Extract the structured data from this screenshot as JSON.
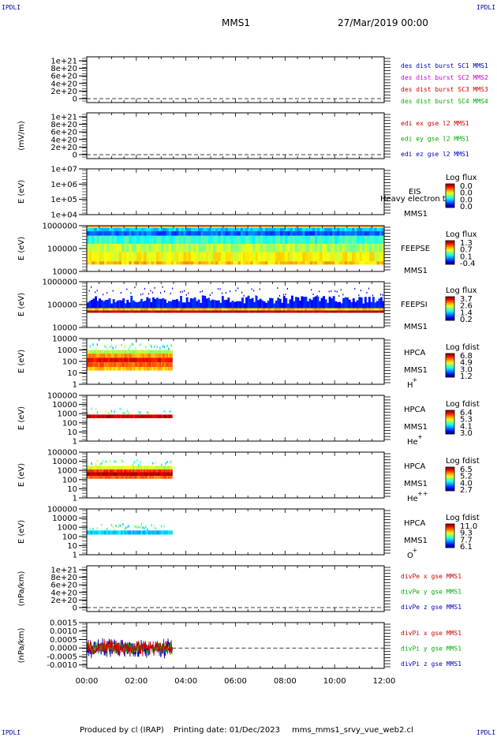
{
  "corner_label": "IPDLI",
  "header": {
    "spacecraft": "MMS1",
    "datetime": "27/Mar/2019 00:00"
  },
  "footer": {
    "producer": "Produced by cl (IRAP)",
    "printing": "Printing date: 01/Dec/2023",
    "script": "mms_mms1_srvy_vue_web2.cl"
  },
  "xaxis": {
    "ticks": [
      "00:00",
      "02:00",
      "04:00",
      "06:00",
      "08:00",
      "10:00",
      "12:00"
    ],
    "range_hours": [
      0,
      12
    ]
  },
  "chart_data": [
    {
      "type": "line",
      "id": "des",
      "ylabel": "",
      "yticks": [
        "1e+21",
        "8e+20",
        "6e+20",
        "4e+20",
        "2e+20",
        "0"
      ],
      "zero_line": true,
      "series": [
        {
          "name": "des dist burst SC1 MMS1",
          "color": "#0000c0"
        },
        {
          "name": "des dist burst SC2 MMS2",
          "color": "#d000d0"
        },
        {
          "name": "des dist burst SC3 MMS3",
          "color": "#d00000"
        },
        {
          "name": "des dist burst SC4 MMS4",
          "color": "#00b000"
        }
      ]
    },
    {
      "type": "line",
      "id": "edi",
      "ylabel": "(mV/m)",
      "yticks": [
        "1e+21",
        "8e+20",
        "6e+20",
        "4e+20",
        "2e+20",
        "0"
      ],
      "zero_line": true,
      "series": [
        {
          "name": "edi ex gse l2 MMS1",
          "color": "#d00000"
        },
        {
          "name": "edi ey gse l2 MMS1",
          "color": "#00b000"
        },
        {
          "name": "edi ez gse l2 MMS1",
          "color": "#0000c0"
        }
      ]
    },
    {
      "type": "heatmap",
      "id": "eis",
      "ylabel": "E (eV)",
      "yticks": [
        "1e+07",
        "1e+06",
        "1e+05",
        "1e+04"
      ],
      "instrument": "EIS",
      "note": "Heavy electron to",
      "spacecraft": "MMS1",
      "cbar_title": "Log flux",
      "cbar_ticks": [
        "0.0",
        "0.0",
        "0.0",
        "0.0"
      ],
      "data_extent_hours": [
        0,
        0
      ]
    },
    {
      "type": "heatmap",
      "id": "feepse",
      "ylabel": "E (eV)",
      "yticks": [
        "1000000",
        "100000",
        "10000"
      ],
      "instrument": "FEEPSE",
      "spacecraft": "MMS1",
      "cbar_title": "Log flux",
      "cbar_ticks": [
        "1.3",
        "0.7",
        "0.1",
        "-0.4"
      ],
      "data_extent_hours": [
        0,
        12
      ]
    },
    {
      "type": "heatmap",
      "id": "feepsi",
      "ylabel": "E (eV)",
      "yticks": [
        "1000000",
        "100000",
        "10000"
      ],
      "instrument": "FEEPSI",
      "spacecraft": "MMS1",
      "cbar_title": "Log flux",
      "cbar_ticks": [
        "3.7",
        "2.6",
        "1.4",
        "0.2"
      ],
      "data_extent_hours": [
        0,
        12
      ]
    },
    {
      "type": "heatmap",
      "id": "hpca_h",
      "ylabel": "E (eV)",
      "yticks": [
        "10000",
        "1000",
        "100",
        "10",
        "1"
      ],
      "instrument": "HPCA",
      "spacecraft": "MMS1",
      "species": "H",
      "charge": "+",
      "cbar_title": "Log fdist",
      "cbar_ticks": [
        "6.8",
        "4.9",
        "3.0",
        "1.2"
      ],
      "data_extent_hours": [
        0,
        3.45
      ]
    },
    {
      "type": "heatmap",
      "id": "hpca_he",
      "ylabel": "E (eV)",
      "yticks": [
        "100000",
        "10000",
        "1000",
        "100",
        "10",
        "1"
      ],
      "instrument": "HPCA",
      "spacecraft": "MMS1",
      "species": "He",
      "charge": "+",
      "cbar_title": "Log fdist",
      "cbar_ticks": [
        "6.4",
        "5.3",
        "4.1",
        "3.0"
      ],
      "data_extent_hours": [
        0,
        3.45
      ]
    },
    {
      "type": "heatmap",
      "id": "hpca_hepp",
      "ylabel": "E (eV)",
      "yticks": [
        "100000",
        "10000",
        "1000",
        "100",
        "10",
        "1"
      ],
      "instrument": "HPCA",
      "spacecraft": "MMS1",
      "species": "He",
      "charge": "++",
      "cbar_title": "Log fdist",
      "cbar_ticks": [
        "6.5",
        "5.2",
        "4.0",
        "2.7"
      ],
      "data_extent_hours": [
        0,
        3.45
      ]
    },
    {
      "type": "heatmap",
      "id": "hpca_o",
      "ylabel": "E (eV)",
      "yticks": [
        "100000",
        "10000",
        "1000",
        "100",
        "10",
        "1"
      ],
      "instrument": "HPCA",
      "spacecraft": "MMS1",
      "species": "O",
      "charge": "+",
      "cbar_title": "Log fdist",
      "cbar_ticks": [
        "11.0",
        "9.3",
        "7.7",
        "6.1"
      ],
      "data_extent_hours": [
        0,
        3.45
      ]
    },
    {
      "type": "line",
      "id": "divpe",
      "ylabel": "(nPa/km)",
      "yticks": [
        "1e+21",
        "8e+20",
        "6e+20",
        "4e+20",
        "2e+20",
        "0"
      ],
      "zero_line": true,
      "series": [
        {
          "name": "divPe x gse MMS1",
          "color": "#d00000"
        },
        {
          "name": "divPe y gse MMS1",
          "color": "#00b000"
        },
        {
          "name": "divPe z gse MMS1",
          "color": "#0000c0"
        }
      ]
    },
    {
      "type": "line",
      "id": "divpi",
      "ylabel": "(nPa/km)",
      "yticks": [
        "0.0015",
        "0.0010",
        "0.0005",
        "0.0000",
        "-0.0005",
        "-0.0010"
      ],
      "ylim": [
        -0.0012,
        0.0015
      ],
      "zero_line": true,
      "data_extent_hours": [
        0,
        3.45
      ],
      "series": [
        {
          "name": "divPi x gse MMS1",
          "color": "#d00000"
        },
        {
          "name": "divPi y gse MMS1",
          "color": "#00b000"
        },
        {
          "name": "divPi z gse MMS1",
          "color": "#0000c0"
        }
      ]
    }
  ]
}
